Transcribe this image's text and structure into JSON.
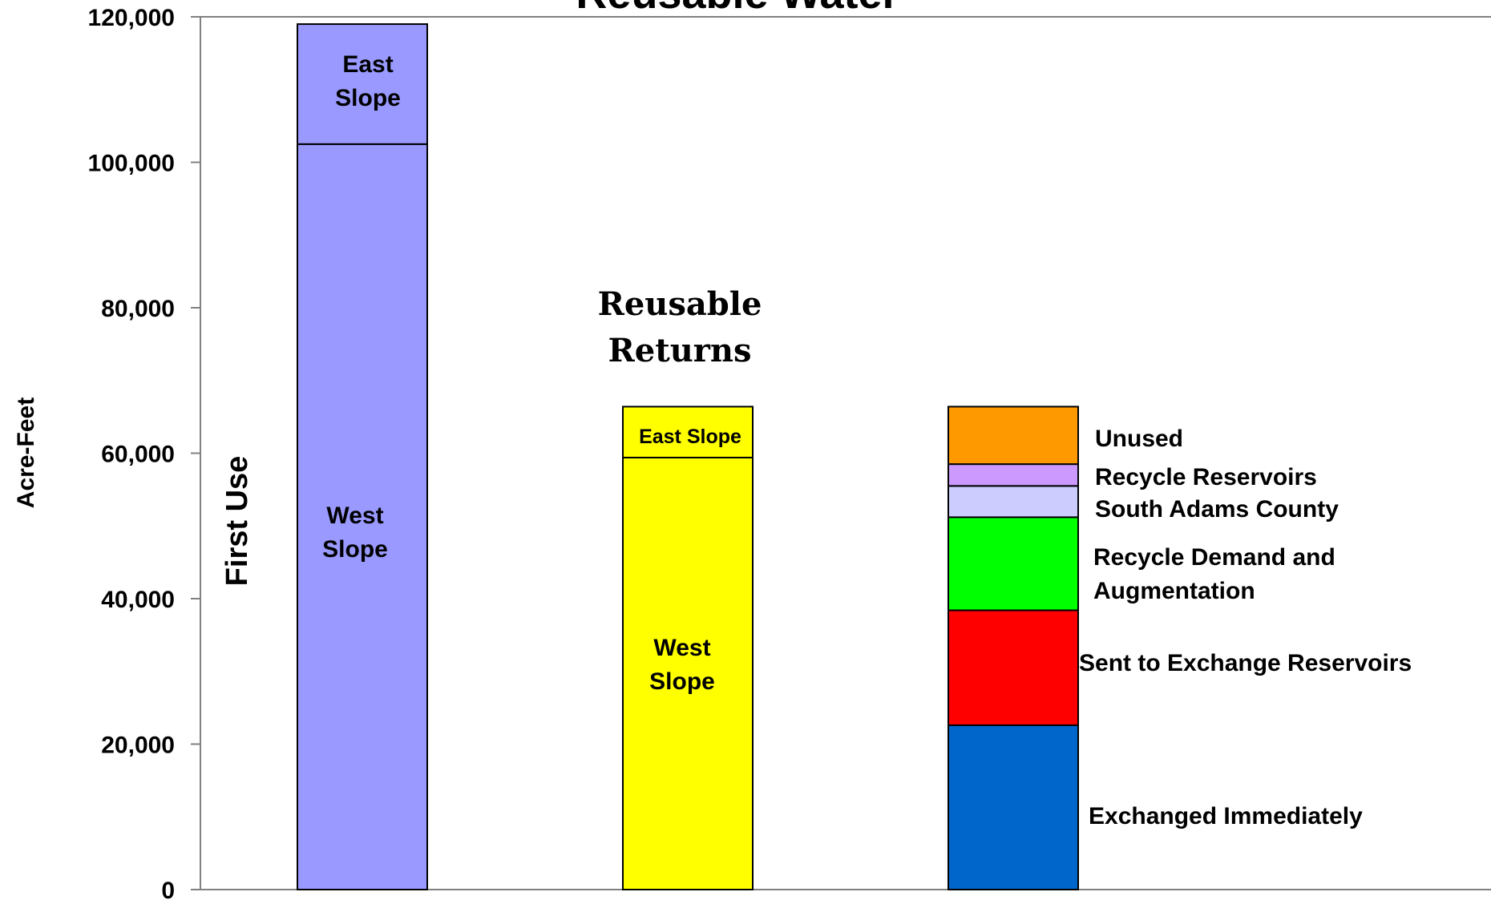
{
  "chart_data": {
    "type": "bar",
    "stacked": true,
    "title": "Reusable Water",
    "ylabel": "Acre-Feet",
    "xlabel": "",
    "ylim": [
      0,
      120000
    ],
    "yticks": [
      0,
      20000,
      40000,
      60000,
      80000,
      100000,
      120000
    ],
    "ytick_labels": [
      "0",
      "20,000",
      "40,000",
      "60,000",
      "80,000",
      "100,000",
      "120,000"
    ],
    "grid": false,
    "bars": [
      {
        "label": "First Use",
        "segments": [
          {
            "name": "West Slope",
            "value": 102500,
            "color": "#9999FF",
            "label": "West\nSlope"
          },
          {
            "name": "East Slope",
            "value": 16500,
            "color": "#9999FF",
            "label": "East\nSlope"
          }
        ]
      },
      {
        "label": "Reusable\nReturns",
        "segments": [
          {
            "name": "West Slope",
            "value": 59400,
            "color": "#FFFF00",
            "label": "West\nSlope"
          },
          {
            "name": "East Slope",
            "value": 7000,
            "color": "#FFFF00",
            "label": "East Slope"
          }
        ]
      },
      {
        "label": "",
        "segments": [
          {
            "name": "Exchanged Immediately",
            "value": 22600,
            "color": "#0066CC",
            "label": "Exchanged Immediately"
          },
          {
            "name": "Sent to Exchange Reservoirs",
            "value": 15800,
            "color": "#FF0000",
            "label": "Sent to Exchange Reservoirs"
          },
          {
            "name": "Recycle Demand and Augmentation",
            "value": 12800,
            "color": "#00FF00",
            "label": "Recycle Demand and\nAugmentation"
          },
          {
            "name": "South Adams County",
            "value": 4300,
            "color": "#CCCCFF",
            "label": "South Adams County"
          },
          {
            "name": "Recycle Reservoirs",
            "value": 3000,
            "color": "#CC99FF",
            "label": "Recycle Reservoirs"
          },
          {
            "name": "Unused",
            "value": 7900,
            "color": "#FF9900",
            "label": "Unused"
          }
        ]
      }
    ]
  }
}
